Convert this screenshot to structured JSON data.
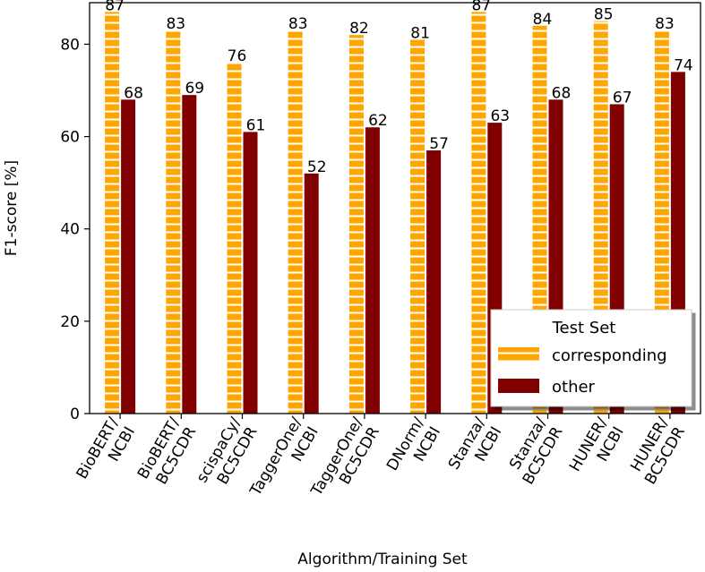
{
  "chart_data": {
    "type": "bar",
    "title": "",
    "xlabel": "Algorithm/Training Set",
    "ylabel": "F1-score [%]",
    "ylim": [
      0,
      89
    ],
    "yticks": [
      0,
      20,
      40,
      60,
      80
    ],
    "categories": [
      [
        "BioBERT/",
        "NCBI"
      ],
      [
        "BioBERT/",
        "BC5CDR"
      ],
      [
        "scispaCy/",
        "BC5CDR"
      ],
      [
        "TaggerOne/",
        "NCBI"
      ],
      [
        "TaggerOne/",
        "BC5CDR"
      ],
      [
        "DNorm/",
        "NCBI"
      ],
      [
        "Stanza/",
        "NCBI"
      ],
      [
        "Stanza/",
        "BC5CDR"
      ],
      [
        "HUNER/",
        "NCBI"
      ],
      [
        "HUNER/",
        "BC5CDR"
      ]
    ],
    "series": [
      {
        "name": "corresponding",
        "values": [
          87,
          83,
          76,
          83,
          82,
          81,
          87,
          84,
          85,
          83
        ],
        "labels": [
          "87",
          "83",
          "76",
          "83",
          "82",
          "81",
          "87",
          "84",
          "85",
          "83"
        ]
      },
      {
        "name": "other",
        "values": [
          68,
          69,
          61,
          52,
          62,
          57,
          63,
          68,
          67,
          74
        ],
        "labels": [
          "68",
          "69",
          "61",
          "52",
          "62",
          "57",
          "63",
          "68",
          "67",
          "74"
        ]
      }
    ],
    "legend": {
      "title": "Test Set",
      "position": "lower-right"
    },
    "colors": {
      "corresponding": "#FFA500",
      "other": "#800000",
      "hatch": "#ffffff"
    },
    "grid": false
  }
}
